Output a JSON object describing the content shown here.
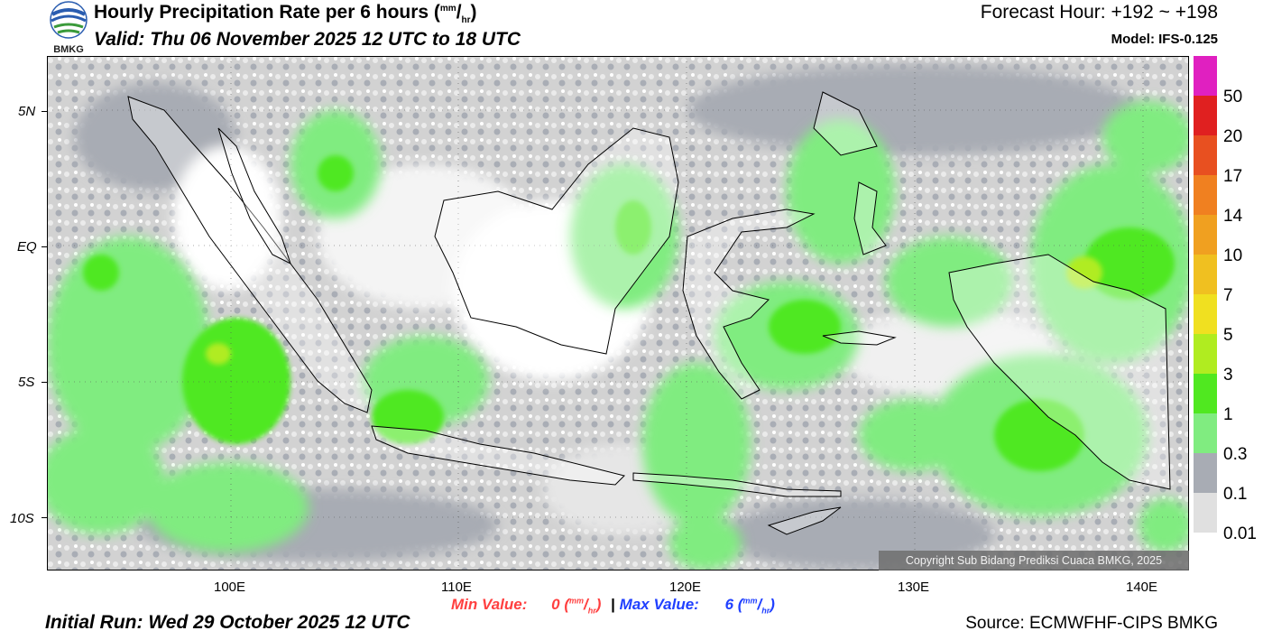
{
  "logo": {
    "text": "BMKG"
  },
  "header": {
    "title_main": "Hourly Precipitation Rate per 6 hours (",
    "unit_num": "mm",
    "unit_den": "hr",
    "title_close": ")",
    "valid": "Valid: Thu 06 November 2025 12 UTC to 18 UTC",
    "forecast_hour": "Forecast Hour: +192 ~ +198",
    "model": "Model: IFS-0.125"
  },
  "map": {
    "lat_labels": [
      "5N",
      "EQ",
      "5S",
      "10S"
    ],
    "lon_labels": [
      "100E",
      "110E",
      "120E",
      "130E",
      "140E"
    ],
    "copyright": "Copyright Sub Bidang Prediksi Cuaca BMKG, 2025"
  },
  "colorbar": {
    "labels": [
      "50",
      "20",
      "17",
      "14",
      "10",
      "7",
      "5",
      "3",
      "1",
      "0.3",
      "0.1",
      "0.01"
    ],
    "colors": [
      "#e020c0",
      "#e02020",
      "#e85020",
      "#f08020",
      "#f0a020",
      "#f0c020",
      "#f0e020",
      "#e8f020",
      "#b0ec20",
      "#50e820",
      "#80ec80",
      "#a8acb4",
      "#d4d4d4",
      "#e8e8e8"
    ]
  },
  "stats": {
    "min_label": "Min Value:",
    "min_value": "0",
    "max_label": "Max Value:",
    "max_value": "6",
    "separator": "|",
    "unit_open": "(",
    "unit_num": "mm",
    "unit_den": "hr",
    "unit_close": ")"
  },
  "footer": {
    "initial_run": "Initial Run: Wed 29 October 2025 12 UTC",
    "source": "Source: ECMWFHF-CIPS BMKG"
  }
}
